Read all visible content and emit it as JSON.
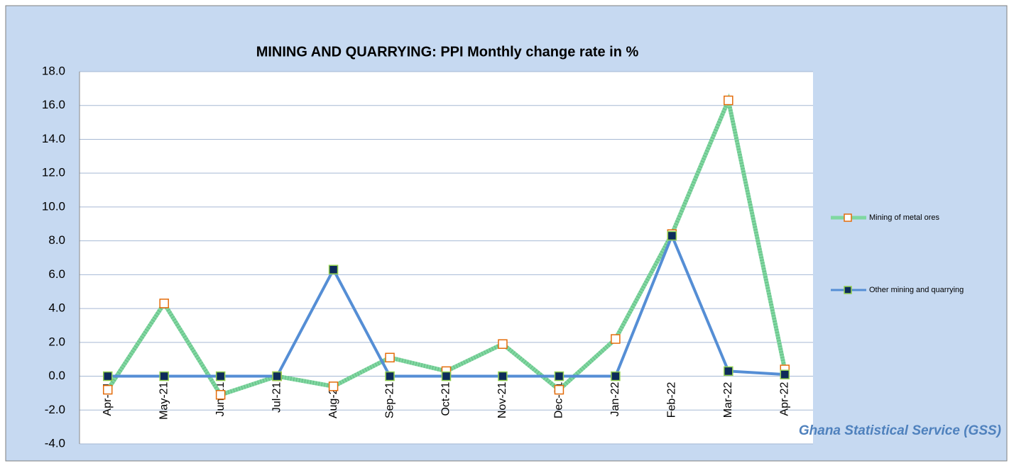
{
  "chart_data": {
    "type": "line",
    "title": "MINING AND QUARRYING:  PPI  Monthly change rate  in %",
    "categories": [
      "Apr-21",
      "May-21",
      "Jun-21",
      "Jul-21",
      "Aug-21",
      "Sep-21",
      "Oct-21",
      "Nov-21",
      "Dec-21",
      "Jan-22",
      "Feb-22",
      "Mar-22",
      "Apr-22"
    ],
    "series": [
      {
        "name": "Mining of metal ores",
        "color": "#7fd8a0",
        "marker_color": "#e46c0a",
        "values": [
          -0.8,
          4.3,
          -1.1,
          0.0,
          -0.6,
          1.1,
          0.3,
          1.9,
          -0.8,
          2.2,
          8.4,
          16.3,
          0.4
        ]
      },
      {
        "name": "Other mining and quarrying",
        "color": "#558ed5",
        "marker_color": "#0d2b5a",
        "values": [
          0.0,
          0.0,
          0.0,
          0.0,
          6.3,
          0.0,
          0.0,
          0.0,
          0.0,
          0.0,
          8.3,
          0.3,
          0.1
        ]
      }
    ],
    "ylim": [
      -4,
      18
    ],
    "yticks": [
      {
        "value": -4,
        "label": "-4.0"
      },
      {
        "value": -2,
        "label": "-2.0"
      },
      {
        "value": 0,
        "label": "0.0"
      },
      {
        "value": 2,
        "label": "2.0"
      },
      {
        "value": 4,
        "label": "4.0"
      },
      {
        "value": 6,
        "label": "6.0"
      },
      {
        "value": 8,
        "label": "8.0"
      },
      {
        "value": 10,
        "label": "10.0"
      },
      {
        "value": 12,
        "label": "12.0"
      },
      {
        "value": 14,
        "label": "14.0"
      },
      {
        "value": 16,
        "label": "16.0"
      },
      {
        "value": 18,
        "label": "18.0"
      }
    ],
    "grid": true,
    "legend": "right",
    "source": "Ghana Statistical Service (GSS)"
  }
}
